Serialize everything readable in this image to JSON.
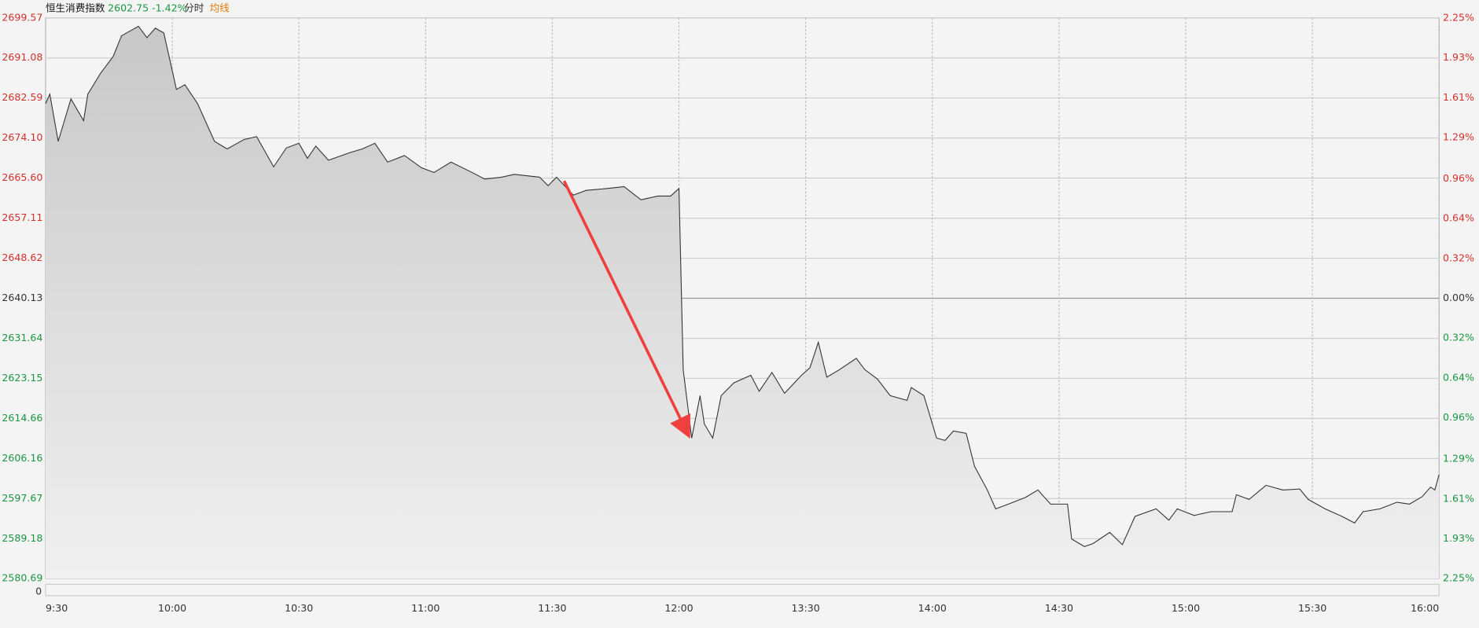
{
  "chart_data": {
    "type": "line",
    "title": "恒生消费指数",
    "subtitle": "2602.75 -1.42%",
    "tabs": [
      "分时",
      "均线"
    ],
    "volume_label": "0",
    "x": [
      0,
      1,
      3,
      6,
      9,
      10,
      13,
      16,
      18,
      22,
      24,
      26,
      28,
      31,
      33,
      36,
      40,
      43,
      47,
      50,
      54,
      57,
      60,
      62,
      64,
      67,
      72,
      75,
      78,
      81,
      85,
      89,
      92,
      96,
      101,
      104,
      108,
      111,
      117,
      119,
      121,
      125,
      128,
      133,
      137,
      141,
      145,
      148,
      150,
      151,
      153,
      155,
      156,
      158,
      160,
      163,
      167,
      169,
      172,
      175,
      179,
      181,
      183,
      185,
      188,
      192,
      194,
      197,
      200,
      204,
      205,
      208,
      211,
      213,
      215,
      218,
      220,
      223,
      225,
      228,
      232,
      235,
      238,
      242,
      243,
      246,
      248,
      252,
      255,
      258,
      263,
      266,
      268,
      272,
      276,
      281,
      282,
      285,
      289,
      293,
      297,
      299,
      303,
      307,
      310,
      312,
      316,
      320,
      323,
      326,
      328,
      329,
      330
    ],
    "series": [
      {
        "name": "恒生消费指数",
        "color": "#333333",
        "values": [
          2681.4,
          2683.4,
          2673.4,
          2682.4,
          2677.8,
          2683.4,
          2687.8,
          2691.4,
          2695.8,
          2697.8,
          2695.4,
          2697.4,
          2696.4,
          2684.4,
          2685.4,
          2681.4,
          2673.4,
          2671.8,
          2673.8,
          2674.4,
          2668.0,
          2672.0,
          2673.0,
          2669.8,
          2672.4,
          2669.4,
          2671.0,
          2671.8,
          2673.0,
          2669.0,
          2670.4,
          2667.8,
          2666.8,
          2669.0,
          2666.8,
          2665.4,
          2665.8,
          2666.4,
          2665.8,
          2664.0,
          2665.8,
          2662.0,
          2663.0,
          2663.4,
          2663.8,
          2661.0,
          2661.8,
          2661.8,
          2663.4,
          2625.0,
          2610.5,
          2619.5,
          2613.5,
          2610.5,
          2619.5,
          2622.2,
          2623.8,
          2620.4,
          2624.4,
          2620.0,
          2623.8,
          2625.4,
          2630.8,
          2623.4,
          2625.0,
          2627.4,
          2625.0,
          2623.0,
          2619.5,
          2618.5,
          2621.2,
          2619.5,
          2610.5,
          2610.0,
          2612.0,
          2611.5,
          2604.5,
          2599.5,
          2595.5,
          2596.5,
          2597.9,
          2599.5,
          2596.5,
          2596.5,
          2589.1,
          2587.5,
          2588.1,
          2590.5,
          2587.9,
          2593.9,
          2595.5,
          2593.1,
          2595.5,
          2594.1,
          2594.9,
          2594.9,
          2598.5,
          2597.5,
          2600.5,
          2599.5,
          2599.7,
          2597.5,
          2595.5,
          2593.9,
          2592.5,
          2594.9,
          2595.5,
          2596.9,
          2596.5,
          2598.1,
          2600.1,
          2599.5,
          2602.75
        ]
      }
    ],
    "xlim": [
      0,
      330
    ],
    "xticks": [
      {
        "value": 0,
        "label": "9:30"
      },
      {
        "value": 30,
        "label": "10:00"
      },
      {
        "value": 60,
        "label": "10:30"
      },
      {
        "value": 90,
        "label": "11:00"
      },
      {
        "value": 120,
        "label": "11:30"
      },
      {
        "value": 150,
        "label": "12:00"
      },
      {
        "value": 180,
        "label": "13:30"
      },
      {
        "value": 210,
        "label": "14:00"
      },
      {
        "value": 240,
        "label": "14:30"
      },
      {
        "value": 270,
        "label": "15:00"
      },
      {
        "value": 300,
        "label": "15:30"
      },
      {
        "value": 330,
        "label": "16:00"
      }
    ],
    "ylim": [
      2580.69,
      2699.57
    ],
    "yticks": [
      {
        "value": 2699.57,
        "label": "2699.57"
      },
      {
        "value": 2691.08,
        "label": "2691.08"
      },
      {
        "value": 2682.59,
        "label": "2682.59"
      },
      {
        "value": 2674.1,
        "label": "2674.10"
      },
      {
        "value": 2665.6,
        "label": "2665.60"
      },
      {
        "value": 2657.11,
        "label": "2657.11"
      },
      {
        "value": 2648.62,
        "label": "2648.62"
      },
      {
        "value": 2640.13,
        "label": "2640.13"
      },
      {
        "value": 2631.64,
        "label": "2631.64"
      },
      {
        "value": 2623.15,
        "label": "2623.15"
      },
      {
        "value": 2614.66,
        "label": "2614.66"
      },
      {
        "value": 2606.16,
        "label": "2606.16"
      },
      {
        "value": 2597.67,
        "label": "2597.67"
      },
      {
        "value": 2589.18,
        "label": "2589.18"
      },
      {
        "value": 2580.69,
        "label": "2580.69"
      }
    ],
    "y2lim": [
      -2.25,
      2.25
    ],
    "y2ticks": [
      {
        "value": 2.25,
        "label": "2.25%"
      },
      {
        "value": 1.93,
        "label": "1.93%"
      },
      {
        "value": 1.61,
        "label": "1.61%"
      },
      {
        "value": 1.29,
        "label": "1.29%"
      },
      {
        "value": 0.96,
        "label": "0.96%"
      },
      {
        "value": 0.64,
        "label": "0.64%"
      },
      {
        "value": 0.32,
        "label": "0.32%"
      },
      {
        "value": 0,
        "label": "0.00%"
      },
      {
        "value": -0.32,
        "label": "0.32%"
      },
      {
        "value": -0.64,
        "label": "0.64%"
      },
      {
        "value": -0.96,
        "label": "0.96%"
      },
      {
        "value": -1.29,
        "label": "1.29%"
      },
      {
        "value": -1.61,
        "label": "1.61%"
      },
      {
        "value": -1.93,
        "label": "1.93%"
      },
      {
        "value": -2.25,
        "label": "2.25%"
      }
    ],
    "grid": true,
    "up_color": "#d4302b",
    "down_color": "#1a9641",
    "flat_color": "#333333",
    "avg_color": "#e07b00"
  }
}
